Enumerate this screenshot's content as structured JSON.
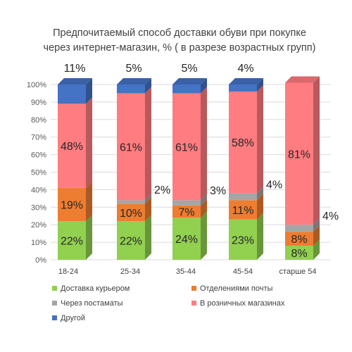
{
  "chart_data": {
    "type": "bar",
    "stacked": true,
    "title": "Предпочитаемый способ доставки обуви при покупке через интернет-магазин, % ( в разрезе возрастных групп)",
    "title_lines": [
      "Предпочитаемый способ доставки обуви при покупке",
      "через интернет-магазин, % ( в разрезе возрастных групп)"
    ],
    "categories": [
      "18-24",
      "25-34",
      "35-44",
      "45-54",
      "старше 54"
    ],
    "ylim": [
      0,
      100
    ],
    "y_ticks": [
      "0%",
      "10%",
      "20%",
      "30%",
      "40%",
      "50%",
      "60%",
      "70%",
      "80%",
      "90%",
      "100%"
    ],
    "grid": true,
    "legend_position": "bottom",
    "series": [
      {
        "name": "Доставка курьером",
        "color": "#92d050",
        "values": [
          22,
          22,
          24,
          23,
          8
        ],
        "labels": [
          "22%",
          "22%",
          "24%",
          "23%",
          "8%"
        ]
      },
      {
        "name": "Отделениями почты",
        "color": "#ed7d31",
        "values": [
          19,
          10,
          7,
          11,
          8
        ],
        "labels": [
          "19%",
          "10%",
          "7%",
          "11%",
          "8%"
        ]
      },
      {
        "name": "Через постаматы",
        "color": "#a5a5a5",
        "values": [
          0,
          2,
          3,
          4,
          4
        ],
        "labels": [
          "",
          "2%",
          "3%",
          "4%",
          "4%"
        ]
      },
      {
        "name": "В розничных магазинах",
        "color": "#ff7c80",
        "values": [
          48,
          61,
          61,
          58,
          81
        ],
        "labels": [
          "48%",
          "61%",
          "61%",
          "58%",
          "81%"
        ]
      },
      {
        "name": "Другой",
        "color": "#4472c4",
        "values": [
          11,
          5,
          5,
          4,
          0
        ],
        "labels": [
          "11%",
          "5%",
          "5%",
          "4%",
          ""
        ]
      }
    ]
  }
}
